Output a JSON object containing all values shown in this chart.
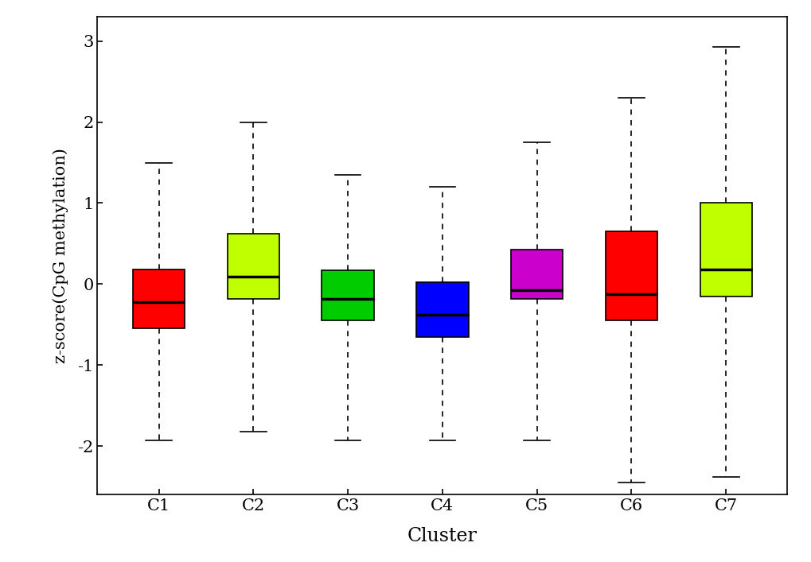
{
  "clusters": [
    "C1",
    "C2",
    "C3",
    "C4",
    "C5",
    "C6",
    "C7"
  ],
  "colors": [
    "#FF0000",
    "#BFFF00",
    "#00CC00",
    "#0000FF",
    "#CC00CC",
    "#FF0000",
    "#BFFF00"
  ],
  "stats": {
    "C1": {
      "whislo": -1.93,
      "q1": -0.55,
      "med": -0.22,
      "q3": 0.18,
      "whishi": 1.5
    },
    "C2": {
      "whislo": -1.82,
      "q1": -0.18,
      "med": 0.09,
      "q3": 0.62,
      "whishi": 2.0
    },
    "C3": {
      "whislo": -1.93,
      "q1": -0.45,
      "med": -0.18,
      "q3": 0.17,
      "whishi": 1.35
    },
    "C4": {
      "whislo": -1.93,
      "q1": -0.65,
      "med": -0.38,
      "q3": 0.02,
      "whishi": 1.2
    },
    "C5": {
      "whislo": -1.93,
      "q1": -0.18,
      "med": -0.08,
      "q3": 0.43,
      "whishi": 1.75
    },
    "C6": {
      "whislo": -2.45,
      "q1": -0.45,
      "med": -0.12,
      "q3": 0.65,
      "whishi": 2.3
    },
    "C7": {
      "whislo": -2.38,
      "q1": -0.15,
      "med": 0.18,
      "q3": 1.0,
      "whishi": 2.93
    }
  },
  "ylabel": "z-score(CpG methylation)",
  "xlabel": "Cluster",
  "ylim": [
    -2.6,
    3.3
  ],
  "yticks": [
    -2,
    -1,
    0,
    1,
    2,
    3
  ],
  "background_color": "#FFFFFF",
  "box_width": 0.55,
  "linewidth": 1.2,
  "median_linewidth": 2.5,
  "figsize": [
    10.2,
    7.07
  ],
  "dpi": 100
}
